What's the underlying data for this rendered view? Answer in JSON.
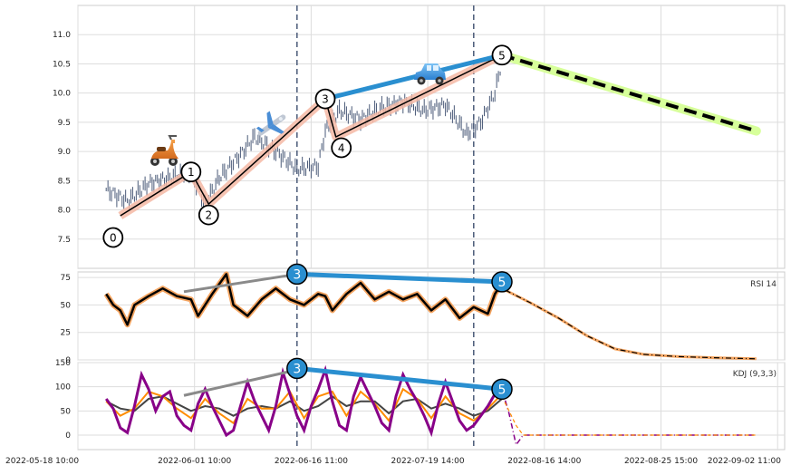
{
  "chart_data": [
    {
      "type": "candlestick",
      "x_tick_labels": [
        "2022-05-18 10:00",
        "2022-06-01 10:00",
        "2022-06-16 11:00",
        "2022-07-19 14:00",
        "2022-08-16 14:00",
        "2022-08-25 15:00",
        "2022-09-02 11:00"
      ],
      "y_ticks": [
        "7.5",
        "8.0",
        "8.5",
        "9.0",
        "9.5",
        "10.0",
        "10.5",
        "11.0"
      ],
      "ylim": [
        7.0,
        11.5
      ],
      "grid": true,
      "price_path": [
        [
          0,
          8.35
        ],
        [
          3,
          8.15
        ],
        [
          6,
          8.45
        ],
        [
          9,
          8.55
        ],
        [
          12,
          8.65
        ],
        [
          14,
          8.1
        ],
        [
          16,
          8.55
        ],
        [
          19,
          8.95
        ],
        [
          21,
          9.25
        ],
        [
          24,
          9.0
        ],
        [
          27,
          8.7
        ],
        [
          30,
          8.75
        ],
        [
          31,
          9.35
        ],
        [
          33,
          9.7
        ],
        [
          36,
          9.55
        ],
        [
          39,
          9.75
        ],
        [
          42,
          9.85
        ],
        [
          45,
          9.7
        ],
        [
          48,
          9.8
        ],
        [
          51,
          9.3
        ],
        [
          53,
          9.5
        ],
        [
          55,
          10.0
        ],
        [
          56,
          10.55
        ]
      ],
      "waves": [
        {
          "label": "0",
          "x": 2,
          "y": 7.9
        },
        {
          "label": "1",
          "x": 12,
          "y": 8.65
        },
        {
          "label": "2",
          "x": 14.5,
          "y": 8.1
        },
        {
          "label": "3",
          "x": 31,
          "y": 9.9
        },
        {
          "label": "4",
          "x": 32.5,
          "y": 9.25
        },
        {
          "label": "5",
          "x": 56,
          "y": 10.65
        }
      ],
      "projection": {
        "from": {
          "x": 56,
          "y": 10.65
        },
        "to": {
          "x": 96,
          "y": 9.35
        }
      },
      "trend_line": {
        "from": {
          "x": 31,
          "y": 9.9
        },
        "to": {
          "x": 56,
          "y": 10.65
        }
      },
      "vlines_x": [
        31,
        56
      ]
    },
    {
      "type": "line",
      "legend": "RSI 14",
      "y_ticks": [
        "0",
        "25",
        "50",
        "75"
      ],
      "ylim": [
        0,
        80
      ],
      "rsi_path": [
        [
          0,
          60
        ],
        [
          1,
          50
        ],
        [
          2,
          45
        ],
        [
          3,
          32
        ],
        [
          4,
          50
        ],
        [
          6,
          58
        ],
        [
          8,
          65
        ],
        [
          10,
          58
        ],
        [
          12,
          55
        ],
        [
          13,
          40
        ],
        [
          15,
          60
        ],
        [
          17,
          78
        ],
        [
          18,
          50
        ],
        [
          20,
          40
        ],
        [
          22,
          55
        ],
        [
          24,
          65
        ],
        [
          26,
          55
        ],
        [
          28,
          50
        ],
        [
          30,
          60
        ],
        [
          31,
          58
        ],
        [
          32,
          45
        ],
        [
          34,
          60
        ],
        [
          36,
          70
        ],
        [
          38,
          55
        ],
        [
          40,
          62
        ],
        [
          42,
          55
        ],
        [
          44,
          60
        ],
        [
          46,
          45
        ],
        [
          48,
          55
        ],
        [
          50,
          38
        ],
        [
          52,
          48
        ],
        [
          54,
          42
        ],
        [
          55,
          60
        ],
        [
          56,
          70
        ]
      ],
      "rsi_projection": [
        [
          56,
          72
        ],
        [
          60,
          65
        ],
        [
          64,
          52
        ],
        [
          68,
          38
        ],
        [
          72,
          22
        ],
        [
          76,
          10
        ],
        [
          80,
          5
        ],
        [
          85,
          3
        ],
        [
          90,
          2
        ],
        [
          96,
          1
        ]
      ],
      "divergence_grey": {
        "from": {
          "x": 11,
          "y": 62
        },
        "to": {
          "x": 31,
          "y": 78
        }
      },
      "divergence_blue": {
        "from": {
          "x": 31,
          "y": 78
        },
        "to": {
          "x": 56,
          "y": 71
        }
      },
      "markers": [
        {
          "label": "3",
          "x": 31,
          "y": 78
        },
        {
          "label": "5",
          "x": 56,
          "y": 71
        }
      ]
    },
    {
      "type": "line",
      "legend": "KDJ (9,3,3)",
      "y_ticks": [
        "0",
        "50",
        "100",
        "150"
      ],
      "ylim": [
        -30,
        150
      ],
      "j_path": [
        [
          0,
          75
        ],
        [
          1,
          55
        ],
        [
          2,
          15
        ],
        [
          3,
          5
        ],
        [
          4,
          60
        ],
        [
          5,
          125
        ],
        [
          6,
          95
        ],
        [
          7,
          50
        ],
        [
          8,
          80
        ],
        [
          9,
          90
        ],
        [
          10,
          40
        ],
        [
          11,
          20
        ],
        [
          12,
          10
        ],
        [
          13,
          65
        ],
        [
          14,
          95
        ],
        [
          15,
          60
        ],
        [
          16,
          30
        ],
        [
          17,
          0
        ],
        [
          18,
          10
        ],
        [
          19,
          60
        ],
        [
          20,
          110
        ],
        [
          21,
          70
        ],
        [
          22,
          40
        ],
        [
          23,
          10
        ],
        [
          24,
          60
        ],
        [
          25,
          130
        ],
        [
          26,
          85
        ],
        [
          27,
          40
        ],
        [
          28,
          10
        ],
        [
          29,
          60
        ],
        [
          30,
          95
        ],
        [
          31,
          135
        ],
        [
          32,
          70
        ],
        [
          33,
          20
        ],
        [
          34,
          10
        ],
        [
          35,
          80
        ],
        [
          36,
          120
        ],
        [
          37,
          90
        ],
        [
          38,
          60
        ],
        [
          39,
          25
        ],
        [
          40,
          10
        ],
        [
          41,
          80
        ],
        [
          42,
          125
        ],
        [
          43,
          95
        ],
        [
          44,
          70
        ],
        [
          45,
          40
        ],
        [
          46,
          5
        ],
        [
          47,
          65
        ],
        [
          48,
          110
        ],
        [
          49,
          70
        ],
        [
          50,
          30
        ],
        [
          51,
          10
        ],
        [
          52,
          20
        ],
        [
          53,
          40
        ],
        [
          54,
          60
        ],
        [
          55,
          85
        ],
        [
          56,
          95
        ]
      ],
      "k_path": [
        [
          0,
          70
        ],
        [
          2,
          40
        ],
        [
          4,
          55
        ],
        [
          6,
          90
        ],
        [
          8,
          80
        ],
        [
          10,
          55
        ],
        [
          12,
          35
        ],
        [
          14,
          75
        ],
        [
          16,
          45
        ],
        [
          18,
          25
        ],
        [
          20,
          75
        ],
        [
          22,
          55
        ],
        [
          24,
          55
        ],
        [
          26,
          90
        ],
        [
          28,
          35
        ],
        [
          30,
          80
        ],
        [
          32,
          90
        ],
        [
          34,
          40
        ],
        [
          36,
          90
        ],
        [
          38,
          65
        ],
        [
          40,
          30
        ],
        [
          42,
          95
        ],
        [
          44,
          75
        ],
        [
          46,
          35
        ],
        [
          48,
          80
        ],
        [
          50,
          45
        ],
        [
          52,
          30
        ],
        [
          54,
          55
        ],
        [
          56,
          85
        ]
      ],
      "d_path": [
        [
          0,
          70
        ],
        [
          2,
          55
        ],
        [
          4,
          50
        ],
        [
          6,
          75
        ],
        [
          8,
          80
        ],
        [
          10,
          65
        ],
        [
          12,
          50
        ],
        [
          14,
          60
        ],
        [
          16,
          55
        ],
        [
          18,
          40
        ],
        [
          20,
          55
        ],
        [
          22,
          60
        ],
        [
          24,
          55
        ],
        [
          26,
          70
        ],
        [
          28,
          50
        ],
        [
          30,
          60
        ],
        [
          32,
          80
        ],
        [
          34,
          60
        ],
        [
          36,
          70
        ],
        [
          38,
          70
        ],
        [
          40,
          45
        ],
        [
          42,
          70
        ],
        [
          44,
          75
        ],
        [
          46,
          55
        ],
        [
          48,
          65
        ],
        [
          50,
          55
        ],
        [
          52,
          40
        ],
        [
          54,
          50
        ],
        [
          56,
          75
        ]
      ],
      "j_projection": [
        [
          56,
          95
        ],
        [
          57,
          45
        ],
        [
          58,
          -20
        ],
        [
          59,
          0
        ],
        [
          60,
          0
        ],
        [
          96,
          0
        ]
      ],
      "d_projection": [
        [
          56,
          80
        ],
        [
          58,
          20
        ],
        [
          59,
          0
        ],
        [
          96,
          0
        ]
      ],
      "divergence_grey": {
        "from": {
          "x": 11,
          "y": 82
        },
        "to": {
          "x": 31,
          "y": 135
        }
      },
      "divergence_blue": {
        "from": {
          "x": 31,
          "y": 138
        },
        "to": {
          "x": 56,
          "y": 95
        }
      },
      "markers": [
        {
          "label": "3",
          "x": 31,
          "y": 138
        },
        {
          "label": "5",
          "x": 56,
          "y": 95
        }
      ]
    }
  ],
  "colors": {
    "candle": "#4a5a78",
    "wave_line": "#000000",
    "wave_glow": "#f4b9a5",
    "blue": "#2a8fd0",
    "grey_line": "#8a8a8a",
    "projection_glow": "#d7ff9a",
    "rsi": "#000000",
    "rsi_glow": "#f4a460",
    "kdj_j": "#880088",
    "kdj_k": "#ff8c00",
    "kdj_d": "#444444",
    "vline": "#4a5a78"
  },
  "icons": [
    "scooter-icon",
    "airplane-icon",
    "car-icon"
  ]
}
